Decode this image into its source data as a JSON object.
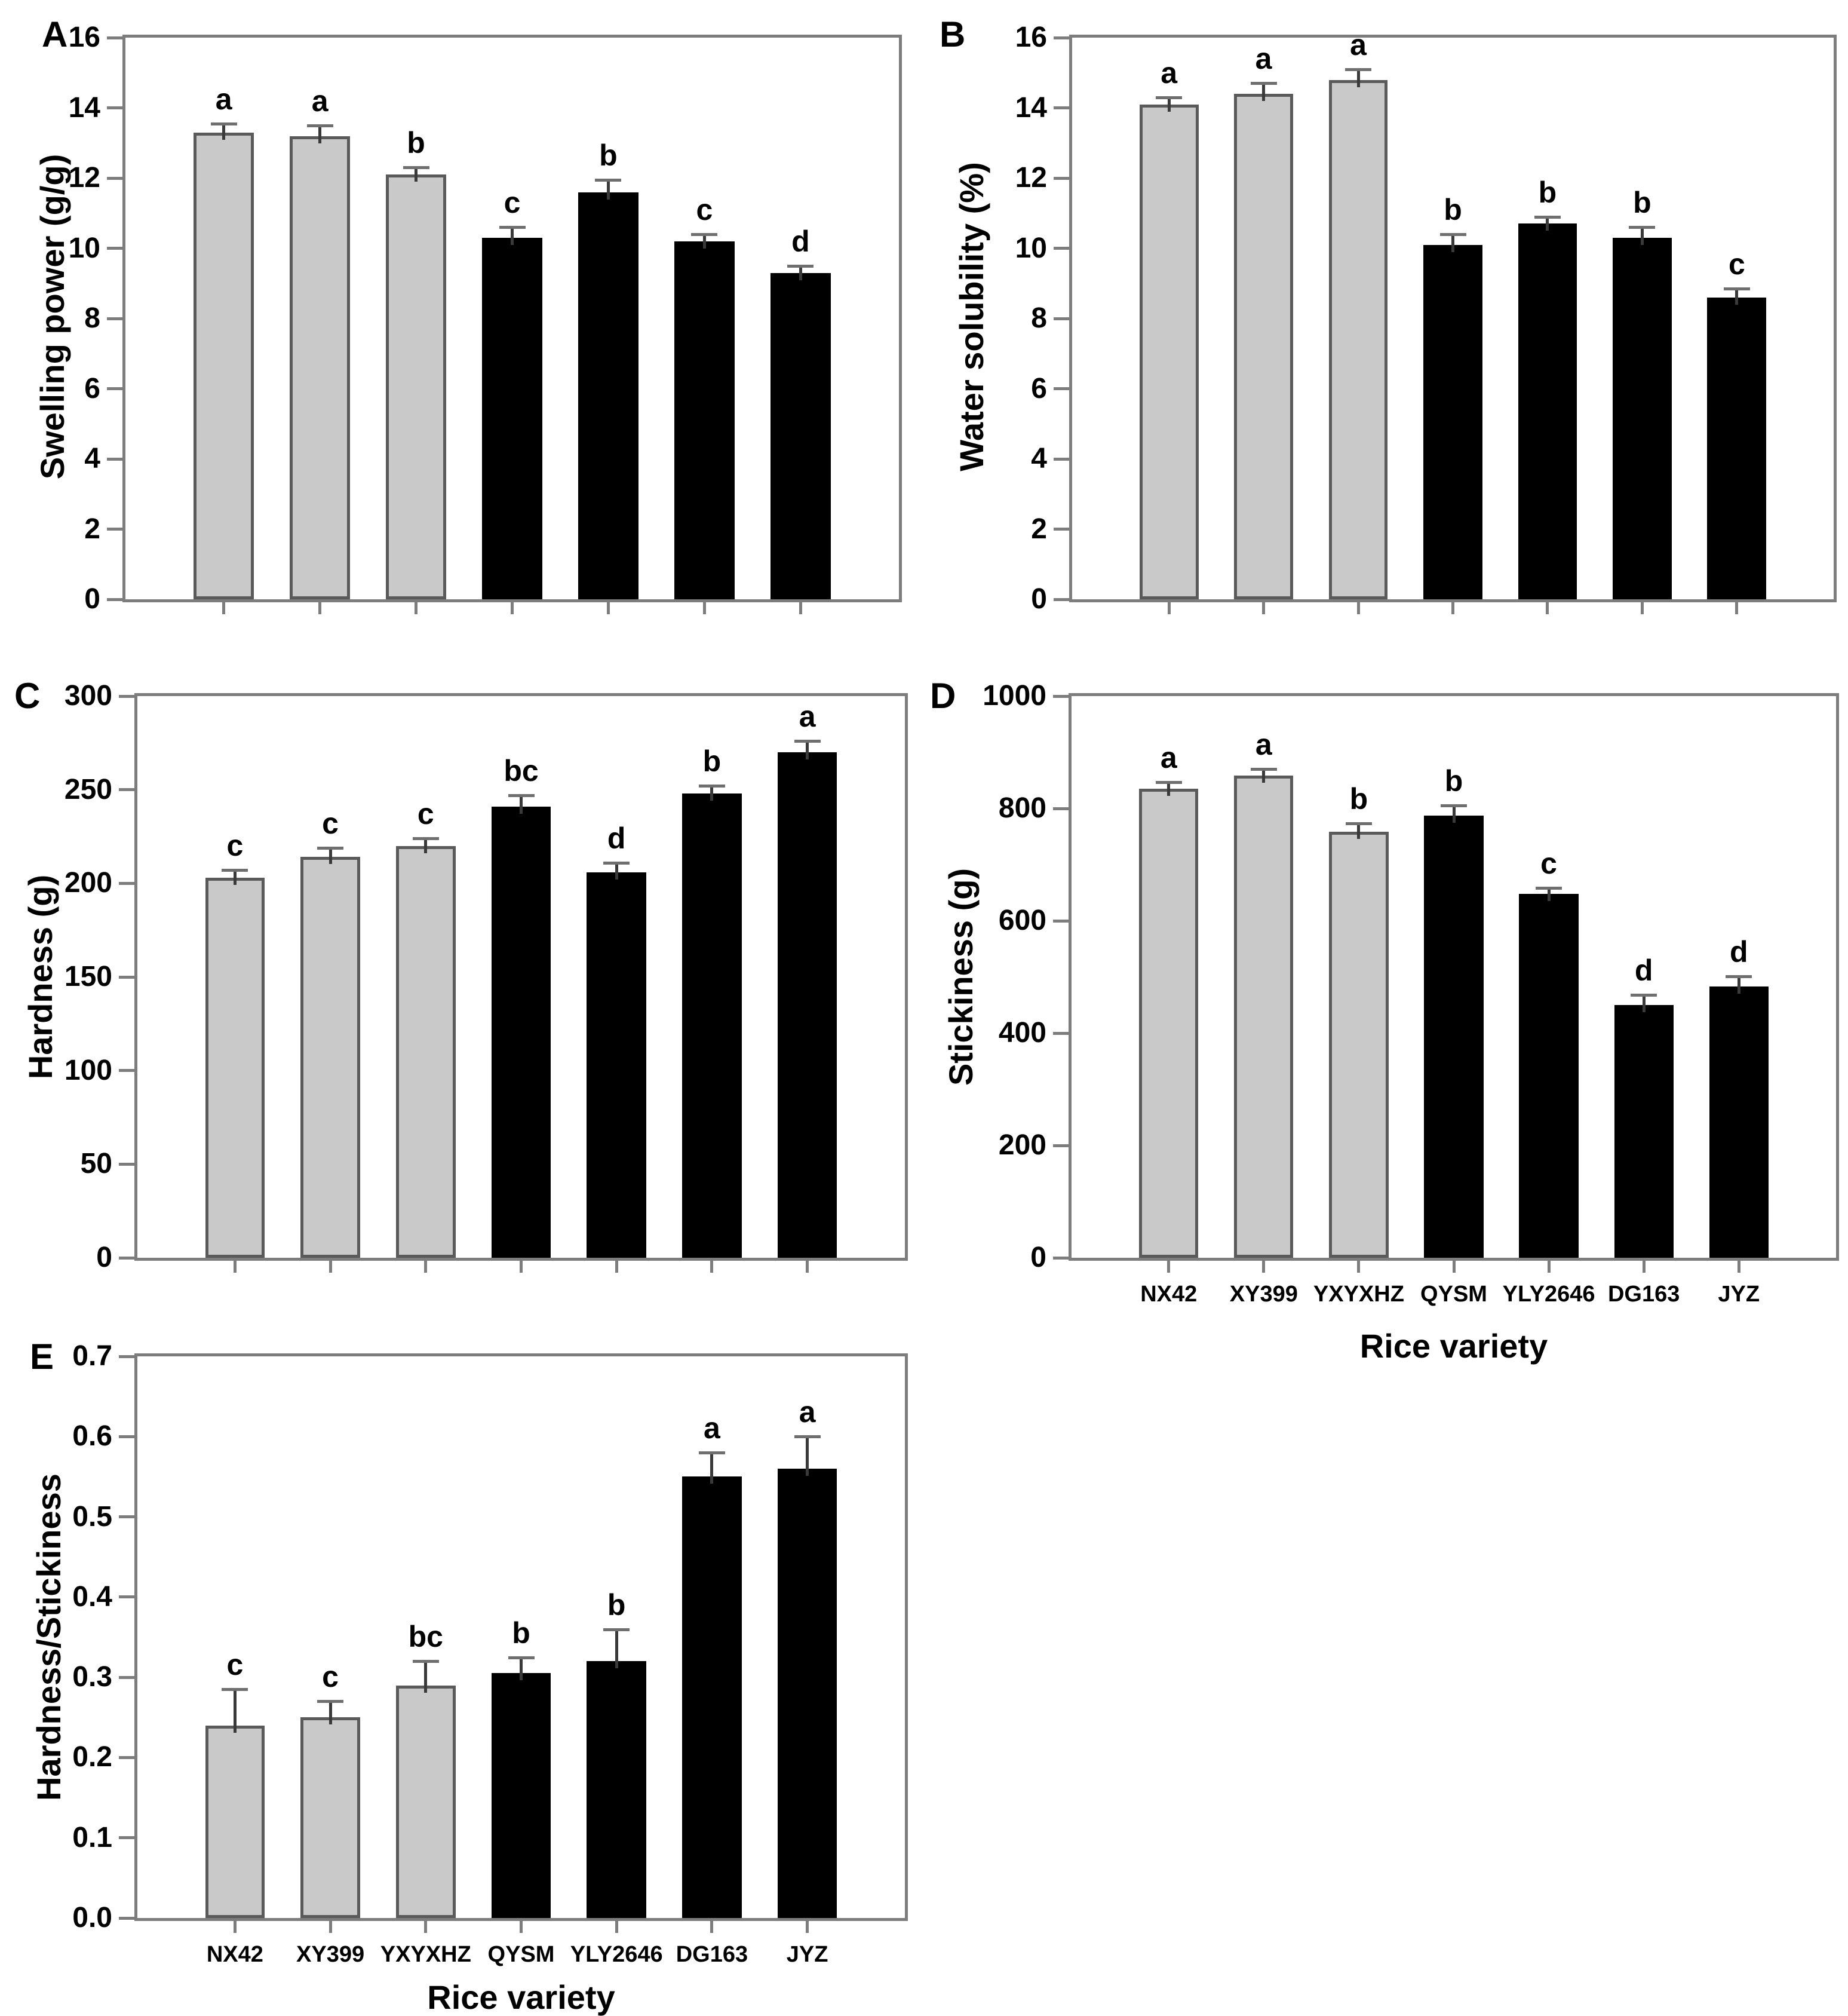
{
  "figure": {
    "categories": [
      "NX42",
      "XY399",
      "YXYXHZ",
      "QYSM",
      "YLY2646",
      "DG163",
      "JYZ"
    ],
    "colors": {
      "gray_bar_fill": "#c9c9c9",
      "gray_bar_border": "#5a5a5a",
      "black_bar_fill": "#000000",
      "axis_line": "#7d7d7d",
      "error_bar": "#3a3a3a",
      "text": "#000000",
      "background": "#ffffff"
    }
  },
  "chart_data": [
    {
      "type": "bar",
      "panel_label": "A",
      "ylabel": "Swelling power (g/g)",
      "xlabel": "Rice variety",
      "show_x_labels": false,
      "ylim": [
        0,
        16
      ],
      "ytick_step": 2,
      "yticks": [
        "0",
        "2",
        "4",
        "6",
        "8",
        "10",
        "12",
        "14",
        "16"
      ],
      "categories": [
        "NX42",
        "XY399",
        "YXYXHZ",
        "QYSM",
        "YLY2646",
        "DG163",
        "JYZ"
      ],
      "values": [
        13.3,
        13.2,
        12.1,
        10.3,
        11.6,
        10.2,
        9.3
      ],
      "errors": [
        0.25,
        0.3,
        0.2,
        0.3,
        0.35,
        0.2,
        0.2
      ],
      "letters": [
        "a",
        "a",
        "b",
        "c",
        "b",
        "c",
        "d"
      ],
      "bar_styles": [
        "gray",
        "gray",
        "gray",
        "black",
        "black",
        "black",
        "black"
      ],
      "grid": false,
      "legend": false
    },
    {
      "type": "bar",
      "panel_label": "B",
      "ylabel": "Water solubility (%)",
      "xlabel": "Rice variety",
      "show_x_labels": false,
      "ylim": [
        0,
        16
      ],
      "ytick_step": 2,
      "yticks": [
        "0",
        "2",
        "4",
        "6",
        "8",
        "10",
        "12",
        "14",
        "16"
      ],
      "categories": [
        "NX42",
        "XY399",
        "YXYXHZ",
        "QYSM",
        "YLY2646",
        "DG163",
        "JYZ"
      ],
      "values": [
        14.1,
        14.4,
        14.8,
        10.1,
        10.7,
        10.3,
        8.6
      ],
      "errors": [
        0.2,
        0.3,
        0.3,
        0.3,
        0.2,
        0.3,
        0.25
      ],
      "letters": [
        "a",
        "a",
        "a",
        "b",
        "b",
        "b",
        "c"
      ],
      "bar_styles": [
        "gray",
        "gray",
        "gray",
        "black",
        "black",
        "black",
        "black"
      ],
      "grid": false,
      "legend": false
    },
    {
      "type": "bar",
      "panel_label": "C",
      "ylabel": "Hardness (g)",
      "xlabel": "Rice variety",
      "show_x_labels": false,
      "ylim": [
        0,
        300
      ],
      "ytick_step": 50,
      "yticks": [
        "0",
        "50",
        "100",
        "150",
        "200",
        "250",
        "300"
      ],
      "categories": [
        "NX42",
        "XY399",
        "YXYXHZ",
        "QYSM",
        "YLY2646",
        "DG163",
        "JYZ"
      ],
      "values": [
        203,
        214,
        220,
        241,
        206,
        248,
        270
      ],
      "errors": [
        4,
        5,
        4,
        6,
        5,
        4,
        6
      ],
      "letters": [
        "c",
        "c",
        "c",
        "bc",
        "d",
        "b",
        "a"
      ],
      "bar_styles": [
        "gray",
        "gray",
        "gray",
        "black",
        "black",
        "black",
        "black"
      ],
      "grid": false,
      "legend": false
    },
    {
      "type": "bar",
      "panel_label": "D",
      "ylabel": "Stickiness (g)",
      "xlabel": "Rice variety",
      "show_x_labels": true,
      "ylim": [
        0,
        1000
      ],
      "ytick_step": 200,
      "yticks": [
        "0",
        "200",
        "400",
        "600",
        "800",
        "1000"
      ],
      "categories": [
        "NX42",
        "XY399",
        "YXYXHZ",
        "QYSM",
        "YLY2646",
        "DG163",
        "JYZ"
      ],
      "values": [
        835,
        858,
        758,
        787,
        648,
        450,
        483
      ],
      "errors": [
        12,
        12,
        15,
        18,
        10,
        18,
        18
      ],
      "letters": [
        "a",
        "a",
        "b",
        "b",
        "c",
        "d",
        "d"
      ],
      "bar_styles": [
        "gray",
        "gray",
        "gray",
        "black",
        "black",
        "black",
        "black"
      ],
      "grid": false,
      "legend": false
    },
    {
      "type": "bar",
      "panel_label": "E",
      "ylabel": "Hardness/Stickiness",
      "xlabel": "Rice variety",
      "show_x_labels": true,
      "ylim": [
        0,
        0.7
      ],
      "ytick_step": 0.1,
      "yticks": [
        "0.0",
        "0.1",
        "0.2",
        "0.3",
        "0.4",
        "0.5",
        "0.6",
        "0.7"
      ],
      "categories": [
        "NX42",
        "XY399",
        "YXYXHZ",
        "QYSM",
        "YLY2646",
        "DG163",
        "JYZ"
      ],
      "values": [
        0.24,
        0.25,
        0.29,
        0.305,
        0.32,
        0.55,
        0.56
      ],
      "errors": [
        0.045,
        0.02,
        0.03,
        0.02,
        0.04,
        0.03,
        0.04
      ],
      "letters": [
        "c",
        "c",
        "bc",
        "b",
        "b",
        "a",
        "a"
      ],
      "bar_styles": [
        "gray",
        "gray",
        "gray",
        "black",
        "black",
        "black",
        "black"
      ],
      "grid": false,
      "legend": false
    }
  ]
}
